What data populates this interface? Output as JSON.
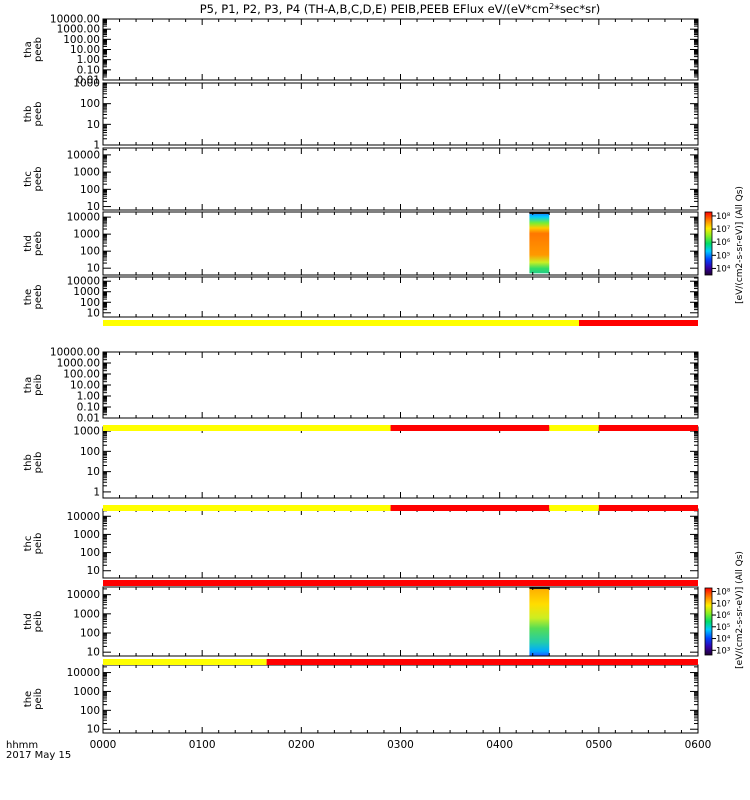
{
  "title": "P5, P1, P2, P3, P4 (TH-A,B,C,D,E) PEIB,PEEB EFlux eV/(eV*cm",
  "title_sup": "2",
  "title_tail": "*sec*sr)",
  "colors": {
    "flag_good": "#ffff00",
    "flag_bad": "#ff0000",
    "axis": "#000000"
  },
  "chart_data": {
    "type": "heatmap",
    "time_axis": {
      "label": "hhmm",
      "date": "2017 May 15",
      "ticks": [
        "0000",
        "0100",
        "0200",
        "0300",
        "0400",
        "0500",
        "0600"
      ],
      "range_hours": [
        0,
        6
      ]
    },
    "colorbars": [
      {
        "label": "[eV/(cm2-s-sr-eV)] (All Qs)",
        "scale": "log",
        "ticks": [
          "10⁸",
          "10⁷",
          "10⁶",
          "10⁵",
          "10⁴"
        ],
        "range_exp": [
          3.5,
          8.3
        ]
      },
      {
        "label": "[eV/(cm2-s-sr-eV)] (All Qs)",
        "scale": "log",
        "ticks": [
          "10⁸",
          "10⁷",
          "10⁶",
          "10⁵",
          "10⁴",
          "10³"
        ],
        "range_exp": [
          2.6,
          8.3
        ]
      }
    ],
    "panels": [
      {
        "probe": "tha",
        "instrument": "peeb",
        "yticks": [
          "10000.00",
          "1000.00",
          "100.00",
          "10.00",
          "1.00",
          "0.10",
          "0.01"
        ],
        "ylog": [
          -2,
          4
        ],
        "data": null
      },
      {
        "probe": "thb",
        "instrument": "peeb",
        "yticks": [
          "1000",
          "100",
          "10",
          "1"
        ],
        "ylog": [
          0,
          3
        ],
        "data": null
      },
      {
        "probe": "thc",
        "instrument": "peeb",
        "yticks": [
          "10000",
          "1000",
          "100",
          "10"
        ],
        "ylog": [
          0.8,
          4.4
        ],
        "data": null
      },
      {
        "probe": "thd",
        "instrument": "peeb",
        "yticks": [
          "10000",
          "1000",
          "100",
          "10"
        ],
        "ylog": [
          0.6,
          4.3
        ],
        "data": {
          "time_range_hours": [
            4.3,
            4.5
          ],
          "energy_range_eV": [
            5,
            27000
          ],
          "colorbar": 0
        }
      },
      {
        "probe": "the",
        "instrument": "peeb",
        "yticks": [
          "10000",
          "1000",
          "100",
          "10"
        ],
        "ylog": [
          0.6,
          4.4
        ],
        "data": null
      },
      {
        "probe": "tha",
        "instrument": "peib",
        "yticks": [
          "10000.00",
          "1000.00",
          "100.00",
          "10.00",
          "1.00",
          "0.10",
          "0.01"
        ],
        "ylog": [
          -2,
          4
        ],
        "data": null
      },
      {
        "probe": "thb",
        "instrument": "peib",
        "yticks": [
          "1000",
          "100",
          "10",
          "1"
        ],
        "ylog": [
          -0.3,
          3.2
        ],
        "data": null
      },
      {
        "probe": "thc",
        "instrument": "peib",
        "yticks": [
          "10000",
          "1000",
          "100",
          "10"
        ],
        "ylog": [
          0.6,
          4.4
        ],
        "data": null
      },
      {
        "probe": "thd",
        "instrument": "peib",
        "yticks": [
          "10000",
          "1000",
          "100",
          "10"
        ],
        "ylog": [
          0.8,
          4.4
        ],
        "data": {
          "time_range_hours": [
            4.3,
            4.5
          ],
          "energy_range_eV": [
            6,
            25000
          ],
          "colorbar": 1
        }
      },
      {
        "probe": "the",
        "instrument": "peib",
        "yticks": [
          "10000",
          "1000",
          "100",
          "10"
        ],
        "ylog": [
          0.8,
          4.4
        ],
        "data": null
      }
    ],
    "flag_bars": [
      {
        "after_panel": 4,
        "segments": [
          {
            "from": 0,
            "to": 4.8,
            "state": "good"
          },
          {
            "from": 4.8,
            "to": 6,
            "state": "bad"
          }
        ]
      },
      {
        "after_panel": 5,
        "segments": [
          {
            "from": 0,
            "to": 2.9,
            "state": "good"
          },
          {
            "from": 2.9,
            "to": 4.5,
            "state": "bad"
          },
          {
            "from": 4.5,
            "to": 5.0,
            "state": "good"
          },
          {
            "from": 5.0,
            "to": 6,
            "state": "bad"
          }
        ]
      },
      {
        "after_panel": 6,
        "segments": [
          {
            "from": 0,
            "to": 2.9,
            "state": "good"
          },
          {
            "from": 2.9,
            "to": 4.5,
            "state": "bad"
          },
          {
            "from": 4.5,
            "to": 5.0,
            "state": "good"
          },
          {
            "from": 5.0,
            "to": 6,
            "state": "bad"
          }
        ]
      },
      {
        "after_panel": 7,
        "segments": [
          {
            "from": 0,
            "to": 6,
            "state": "bad"
          }
        ]
      },
      {
        "after_panel": 8,
        "segments": [
          {
            "from": 0,
            "to": 1.65,
            "state": "good"
          },
          {
            "from": 1.65,
            "to": 6,
            "state": "bad"
          }
        ]
      }
    ]
  }
}
